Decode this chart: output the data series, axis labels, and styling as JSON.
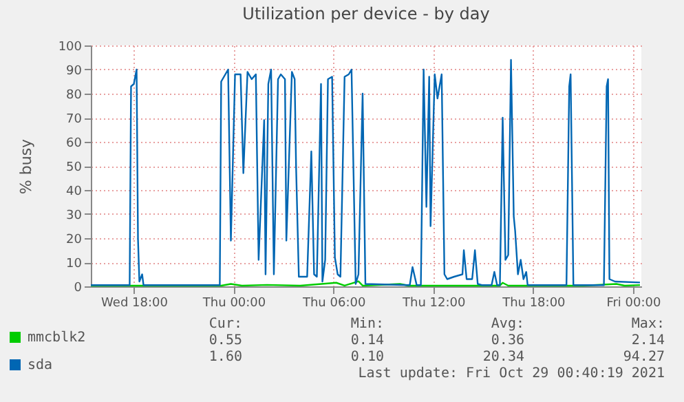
{
  "chart_data": {
    "type": "line",
    "title": "Utilization per device - by day",
    "ylabel": "% busy",
    "xlim": [
      "2021-10-27T15:25",
      "2021-10-29T00:30"
    ],
    "xticks": [
      {
        "value": "2021-10-27T18:00",
        "label": "Wed 18:00"
      },
      {
        "value": "2021-10-28T00:00",
        "label": "Thu 00:00"
      },
      {
        "value": "2021-10-28T06:00",
        "label": "Thu 06:00"
      },
      {
        "value": "2021-10-28T12:00",
        "label": "Thu 12:00"
      },
      {
        "value": "2021-10-28T18:00",
        "label": "Thu 18:00"
      },
      {
        "value": "2021-10-29T00:00",
        "label": "Fri 00:00"
      }
    ],
    "ylim": [
      0,
      100
    ],
    "yticks": [
      0,
      10,
      20,
      30,
      40,
      50,
      60,
      70,
      80,
      90,
      100
    ],
    "grid": true,
    "legend": "bottom left",
    "series": [
      {
        "name": "mmcblk2",
        "color": "#00cc00",
        "x": [
          "2021-10-27T15:25",
          "2021-10-27T23:15",
          "2021-10-27T23:50",
          "2021-10-28T00:30",
          "2021-10-28T02:00",
          "2021-10-28T04:00",
          "2021-10-28T06:10",
          "2021-10-28T06:40",
          "2021-10-28T07:30",
          "2021-10-28T07:45",
          "2021-10-28T10:00",
          "2021-10-28T10:30",
          "2021-10-28T16:00",
          "2021-10-28T16:10",
          "2021-10-28T16:30",
          "2021-10-28T21:00",
          "2021-10-28T23:00",
          "2021-10-28T23:30",
          "2021-10-29T00:25"
        ],
        "values": [
          0.3,
          0.3,
          1.0,
          0.3,
          0.6,
          0.3,
          1.5,
          0.3,
          2.1,
          0.3,
          1.0,
          0.3,
          0.3,
          1.5,
          0.3,
          0.3,
          1.0,
          0.3,
          0.55
        ]
      },
      {
        "name": "sda",
        "color": "#0066b3",
        "x": [
          "2021-10-27T15:25",
          "2021-10-27T17:45",
          "2021-10-27T17:50",
          "2021-10-27T18:00",
          "2021-10-27T18:10",
          "2021-10-27T18:15",
          "2021-10-27T18:20",
          "2021-10-27T18:30",
          "2021-10-27T18:35",
          "2021-10-27T23:10",
          "2021-10-27T23:15",
          "2021-10-27T23:40",
          "2021-10-27T23:50",
          "2021-10-28T00:05",
          "2021-10-28T00:25",
          "2021-10-28T00:35",
          "2021-10-28T00:50",
          "2021-10-28T01:05",
          "2021-10-28T01:20",
          "2021-10-28T01:30",
          "2021-10-28T01:50",
          "2021-10-28T01:55",
          "2021-10-28T02:05",
          "2021-10-28T02:15",
          "2021-10-28T02:25",
          "2021-10-28T02:40",
          "2021-10-28T02:50",
          "2021-10-28T03:05",
          "2021-10-28T03:10",
          "2021-10-28T03:30",
          "2021-10-28T03:40",
          "2021-10-28T03:45",
          "2021-10-28T03:55",
          "2021-10-28T04:25",
          "2021-10-28T04:40",
          "2021-10-28T04:50",
          "2021-10-28T05:00",
          "2021-10-28T05:15",
          "2021-10-28T05:20",
          "2021-10-28T05:30",
          "2021-10-28T05:40",
          "2021-10-28T05:55",
          "2021-10-28T06:05",
          "2021-10-28T06:15",
          "2021-10-28T06:25",
          "2021-10-28T06:40",
          "2021-10-28T06:55",
          "2021-10-28T07:05",
          "2021-10-28T07:20",
          "2021-10-28T07:30",
          "2021-10-28T07:45",
          "2021-10-28T07:55",
          "2021-10-28T10:35",
          "2021-10-28T10:45",
          "2021-10-28T11:00",
          "2021-10-28T11:15",
          "2021-10-28T11:25",
          "2021-10-28T11:35",
          "2021-10-28T11:45",
          "2021-10-28T11:50",
          "2021-10-28T12:05",
          "2021-10-28T12:15",
          "2021-10-28T12:30",
          "2021-10-28T12:40",
          "2021-10-28T12:50",
          "2021-10-28T13:15",
          "2021-10-28T13:45",
          "2021-10-28T13:50",
          "2021-10-28T14:00",
          "2021-10-28T14:20",
          "2021-10-28T14:30",
          "2021-10-28T14:40",
          "2021-10-28T14:55",
          "2021-10-28T15:30",
          "2021-10-28T15:40",
          "2021-10-28T15:50",
          "2021-10-28T16:00",
          "2021-10-28T16:10",
          "2021-10-28T16:20",
          "2021-10-28T16:30",
          "2021-10-28T16:40",
          "2021-10-28T16:50",
          "2021-10-28T16:55",
          "2021-10-28T17:05",
          "2021-10-28T17:15",
          "2021-10-28T17:25",
          "2021-10-28T17:35",
          "2021-10-28T17:40",
          "2021-10-28T20:00",
          "2021-10-28T20:10",
          "2021-10-28T20:15",
          "2021-10-28T20:25",
          "2021-10-28T22:15",
          "2021-10-28T22:25",
          "2021-10-28T22:30",
          "2021-10-28T22:35",
          "2021-10-28T22:55",
          "2021-10-29T00:25"
        ],
        "values": [
          0.5,
          0.5,
          83,
          84,
          90,
          20,
          2,
          5,
          0.5,
          0.5,
          85,
          90,
          19,
          88,
          88,
          47,
          89,
          86,
          88,
          11,
          69,
          5,
          84,
          90,
          5,
          86,
          88,
          86,
          19,
          89,
          86,
          50,
          4,
          4,
          56,
          5,
          4,
          84,
          2,
          11,
          86,
          87,
          12,
          5,
          4,
          87,
          88,
          90,
          1,
          5,
          80,
          1,
          0.5,
          8,
          0.5,
          0.5,
          90,
          33,
          87,
          25,
          88,
          78,
          88,
          5,
          3,
          4,
          5,
          15,
          3,
          3,
          15,
          1,
          0.5,
          0.5,
          6,
          0.5,
          0.5,
          70,
          11,
          13,
          94,
          29,
          23,
          5,
          11,
          3,
          6,
          0.5,
          0.5,
          83,
          88,
          0.5,
          0.5,
          83,
          86,
          3,
          2,
          1.6
        ]
      }
    ],
    "annotations": [
      "Cur:",
      "Min:",
      "Avg:",
      "Max:",
      "0.55",
      "0.14",
      "0.36",
      "2.14",
      "1.60",
      "0.10",
      "20.34",
      "94.27",
      "Last update: Fri Oct 29 00:40:19 2021"
    ]
  }
}
